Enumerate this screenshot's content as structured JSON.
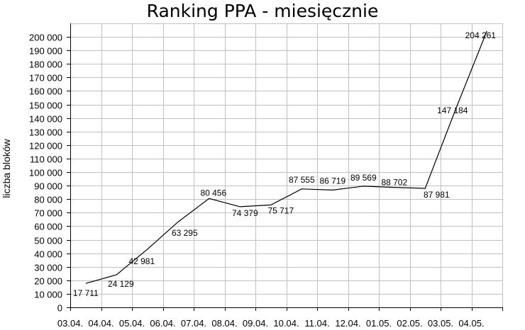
{
  "chart_data": {
    "type": "line",
    "title": "Ranking PPA - miesięcznie",
    "xlabel": "",
    "ylabel": "liczba bloków",
    "categories": [
      "03.04.",
      "04.04.",
      "05.04.",
      "06.04.",
      "07.04.",
      "08.04.",
      "09.04.",
      "10.04.",
      "11.04.",
      "12.04.",
      "01.05.",
      "02.05.",
      "03.05.",
      "04.05."
    ],
    "x": [
      0.5,
      1.5,
      2.5,
      3.5,
      4.5,
      5.5,
      6.5,
      7.5,
      8.5,
      9.5,
      10.5,
      11.5,
      12.5,
      13.5
    ],
    "values": [
      17711,
      24129,
      42981,
      63295,
      80456,
      74379,
      75717,
      87555,
      86719,
      89569,
      88702,
      87981,
      147184,
      204261
    ],
    "value_labels": [
      "17 711",
      "24 129",
      "42 981",
      "63 295",
      "80 456",
      "74 379",
      "75 717",
      "87 555",
      "86 719",
      "89 569",
      "88 702",
      "87 981",
      "147 184",
      "204 261"
    ],
    "ytick_values": [
      0,
      10000,
      20000,
      30000,
      40000,
      50000,
      60000,
      70000,
      80000,
      90000,
      100000,
      110000,
      120000,
      130000,
      140000,
      150000,
      160000,
      170000,
      180000,
      190000,
      200000
    ],
    "ytick_labels": [
      "0",
      "10 000",
      "20 000",
      "30 000",
      "40 000",
      "50 000",
      "60 000",
      "70 000",
      "80 000",
      "90 000",
      "100 000",
      "110 000",
      "120 000",
      "130 000",
      "140 000",
      "150 000",
      "160 000",
      "170 000",
      "180 000",
      "190 000",
      "200 000"
    ],
    "ylim": [
      0,
      200000
    ],
    "grid": true,
    "legend": "none",
    "colors": {
      "line": "#000000",
      "grid": "#c0c0c0",
      "background": "#ffffff"
    }
  }
}
